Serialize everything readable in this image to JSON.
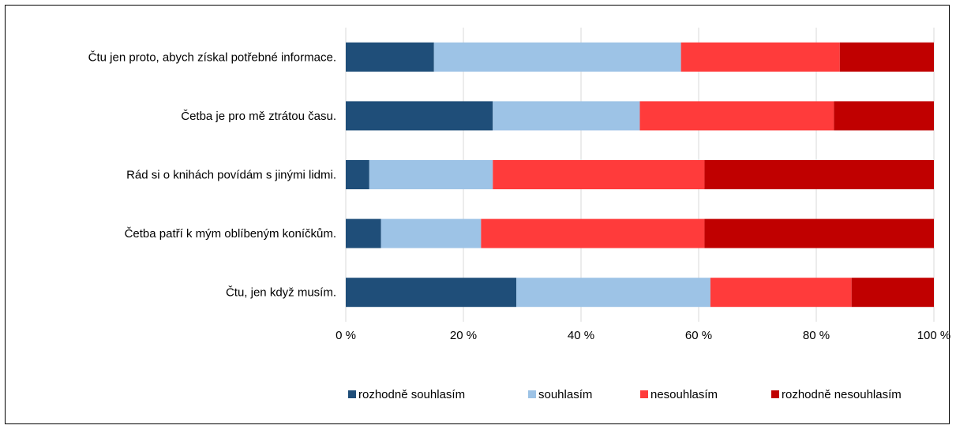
{
  "chart_data": {
    "type": "bar",
    "orientation": "horizontal",
    "stacked": true,
    "percent": true,
    "categories": [
      "Čtu jen proto, abych získal potřebné informace.",
      "Četba je pro mě ztrátou času.",
      "Rád si o knihách povídám s jinými lidmi.",
      "Četba patří k mým oblíbeným koníčkům.",
      "Čtu, jen když musím."
    ],
    "series": [
      {
        "name": "rozhodně souhlasím",
        "color": "#1F4E79",
        "values": [
          15,
          25,
          4,
          6,
          29
        ]
      },
      {
        "name": "souhlasím",
        "color": "#9DC3E6",
        "values": [
          42,
          25,
          21,
          17,
          33
        ]
      },
      {
        "name": "nesouhlasím",
        "color": "#FF3B3B",
        "values": [
          27,
          33,
          36,
          38,
          24
        ]
      },
      {
        "name": "rozhodně nesouhlasím",
        "color": "#C00000",
        "values": [
          16,
          17,
          39,
          39,
          14
        ]
      }
    ],
    "xlim": [
      0,
      100
    ],
    "xticks": [
      "0 %",
      "20 %",
      "40 %",
      "60 %",
      "80 %",
      "100 %"
    ],
    "grid": true,
    "legend_position": "bottom"
  }
}
